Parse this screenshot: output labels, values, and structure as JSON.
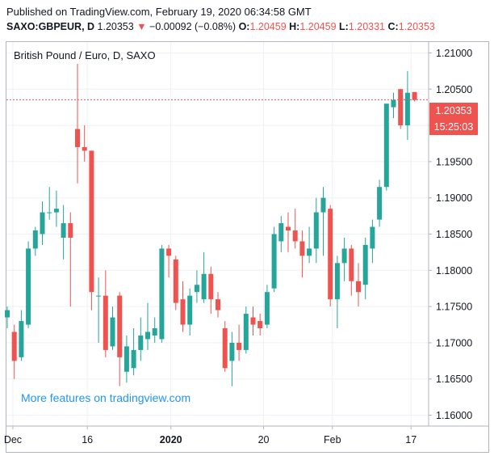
{
  "header": {
    "published_line": "Published on TradingView.com, February 19, 2020 06:34:58 GMT",
    "symbol": "SAXO:GBPEUR, D",
    "last": "1.20353",
    "change_arrow": "▼",
    "change": "−0.00092 (−0.08%)",
    "o_label": "O:",
    "o_value": "1.20459",
    "h_label": "H:",
    "h_value": "1.20459",
    "l_label": "L:",
    "l_value": "1.20331",
    "c_label": "C:",
    "c_value": "1.20353"
  },
  "pane_title": "British Pound / Euro, D, SAXO",
  "watermark": "More features on tradingview.com",
  "price_label": "1.20353",
  "countdown_label": "15:25:03",
  "colors": {
    "up": "#26a69a",
    "down": "#ef5350",
    "grid": "#eef0f3",
    "axis": "#b2b5be",
    "watermark": "#2196f3"
  },
  "chart_data": {
    "type": "candlestick",
    "title": "British Pound / Euro, D, SAXO",
    "ylim": [
      1.1585,
      1.2115
    ],
    "y_ticks": [
      "1.16000",
      "1.16500",
      "1.17000",
      "1.17500",
      "1.18000",
      "1.18500",
      "1.19000",
      "1.19500",
      "1.20000",
      "1.20500",
      "1.21000"
    ],
    "x_ticks": [
      "Dec",
      "16",
      "2020",
      "20",
      "Feb",
      "17"
    ],
    "last_price": 1.20353,
    "candles": [
      {
        "o": 1.1735,
        "h": 1.175,
        "l": 1.172,
        "c": 1.1745
      },
      {
        "o": 1.1715,
        "h": 1.1725,
        "l": 1.165,
        "c": 1.1675
      },
      {
        "o": 1.168,
        "h": 1.1745,
        "l": 1.1675,
        "c": 1.173
      },
      {
        "o": 1.1725,
        "h": 1.184,
        "l": 1.172,
        "c": 1.183
      },
      {
        "o": 1.183,
        "h": 1.186,
        "l": 1.182,
        "c": 1.1855
      },
      {
        "o": 1.185,
        "h": 1.1895,
        "l": 1.1835,
        "c": 1.188
      },
      {
        "o": 1.188,
        "h": 1.1915,
        "l": 1.187,
        "c": 1.188
      },
      {
        "o": 1.188,
        "h": 1.191,
        "l": 1.186,
        "c": 1.1885
      },
      {
        "o": 1.1845,
        "h": 1.189,
        "l": 1.1815,
        "c": 1.1865
      },
      {
        "o": 1.1865,
        "h": 1.188,
        "l": 1.175,
        "c": 1.1845
      },
      {
        "o": 1.1995,
        "h": 1.2085,
        "l": 1.192,
        "c": 1.197
      },
      {
        "o": 1.197,
        "h": 1.2,
        "l": 1.195,
        "c": 1.1965
      },
      {
        "o": 1.1965,
        "h": 1.1965,
        "l": 1.1745,
        "c": 1.177
      },
      {
        "o": 1.1765,
        "h": 1.179,
        "l": 1.17,
        "c": 1.1765
      },
      {
        "o": 1.1765,
        "h": 1.18,
        "l": 1.168,
        "c": 1.169
      },
      {
        "o": 1.1695,
        "h": 1.175,
        "l": 1.169,
        "c": 1.1735
      },
      {
        "o": 1.1765,
        "h": 1.177,
        "l": 1.164,
        "c": 1.168
      },
      {
        "o": 1.166,
        "h": 1.171,
        "l": 1.1645,
        "c": 1.1695
      },
      {
        "o": 1.1665,
        "h": 1.172,
        "l": 1.1655,
        "c": 1.169
      },
      {
        "o": 1.169,
        "h": 1.1735,
        "l": 1.1675,
        "c": 1.171
      },
      {
        "o": 1.1705,
        "h": 1.1755,
        "l": 1.169,
        "c": 1.1715
      },
      {
        "o": 1.171,
        "h": 1.1735,
        "l": 1.17,
        "c": 1.172
      },
      {
        "o": 1.1705,
        "h": 1.1835,
        "l": 1.17,
        "c": 1.183
      },
      {
        "o": 1.183,
        "h": 1.1835,
        "l": 1.179,
        "c": 1.182
      },
      {
        "o": 1.1815,
        "h": 1.182,
        "l": 1.1745,
        "c": 1.1755
      },
      {
        "o": 1.176,
        "h": 1.1785,
        "l": 1.1715,
        "c": 1.1725
      },
      {
        "o": 1.1725,
        "h": 1.1775,
        "l": 1.171,
        "c": 1.1765
      },
      {
        "o": 1.177,
        "h": 1.18,
        "l": 1.1755,
        "c": 1.178
      },
      {
        "o": 1.176,
        "h": 1.1825,
        "l": 1.1755,
        "c": 1.1795
      },
      {
        "o": 1.1795,
        "h": 1.1805,
        "l": 1.174,
        "c": 1.176
      },
      {
        "o": 1.176,
        "h": 1.177,
        "l": 1.1735,
        "c": 1.1745
      },
      {
        "o": 1.172,
        "h": 1.173,
        "l": 1.166,
        "c": 1.1665
      },
      {
        "o": 1.1675,
        "h": 1.1715,
        "l": 1.164,
        "c": 1.17
      },
      {
        "o": 1.17,
        "h": 1.1725,
        "l": 1.1675,
        "c": 1.169
      },
      {
        "o": 1.169,
        "h": 1.175,
        "l": 1.1685,
        "c": 1.174
      },
      {
        "o": 1.1735,
        "h": 1.175,
        "l": 1.171,
        "c": 1.1725
      },
      {
        "o": 1.173,
        "h": 1.174,
        "l": 1.171,
        "c": 1.172
      },
      {
        "o": 1.1725,
        "h": 1.178,
        "l": 1.172,
        "c": 1.177
      },
      {
        "o": 1.1775,
        "h": 1.186,
        "l": 1.177,
        "c": 1.185
      },
      {
        "o": 1.184,
        "h": 1.1875,
        "l": 1.1825,
        "c": 1.1865
      },
      {
        "o": 1.186,
        "h": 1.188,
        "l": 1.1825,
        "c": 1.1855
      },
      {
        "o": 1.1855,
        "h": 1.1885,
        "l": 1.183,
        "c": 1.184
      },
      {
        "o": 1.184,
        "h": 1.1855,
        "l": 1.179,
        "c": 1.182
      },
      {
        "o": 1.182,
        "h": 1.186,
        "l": 1.181,
        "c": 1.183
      },
      {
        "o": 1.183,
        "h": 1.19,
        "l": 1.181,
        "c": 1.188
      },
      {
        "o": 1.188,
        "h": 1.1915,
        "l": 1.182,
        "c": 1.19
      },
      {
        "o": 1.1885,
        "h": 1.189,
        "l": 1.175,
        "c": 1.176
      },
      {
        "o": 1.176,
        "h": 1.182,
        "l": 1.172,
        "c": 1.181
      },
      {
        "o": 1.181,
        "h": 1.1845,
        "l": 1.1785,
        "c": 1.183
      },
      {
        "o": 1.183,
        "h": 1.1835,
        "l": 1.1765,
        "c": 1.1785
      },
      {
        "o": 1.1785,
        "h": 1.181,
        "l": 1.175,
        "c": 1.177
      },
      {
        "o": 1.178,
        "h": 1.1845,
        "l": 1.176,
        "c": 1.1835
      },
      {
        "o": 1.183,
        "h": 1.187,
        "l": 1.181,
        "c": 1.186
      },
      {
        "o": 1.187,
        "h": 1.1925,
        "l": 1.186,
        "c": 1.1915
      },
      {
        "o": 1.1915,
        "h": 1.2025,
        "l": 1.191,
        "c": 1.203
      },
      {
        "o": 1.2025,
        "h": 1.2045,
        "l": 1.201,
        "c": 1.2035
      },
      {
        "o": 1.205,
        "h": 1.205,
        "l": 1.1995,
        "c": 1.2
      },
      {
        "o": 1.2,
        "h": 1.2075,
        "l": 1.198,
        "c": 1.2045
      },
      {
        "o": 1.2046,
        "h": 1.2046,
        "l": 1.2033,
        "c": 1.2035
      }
    ]
  }
}
